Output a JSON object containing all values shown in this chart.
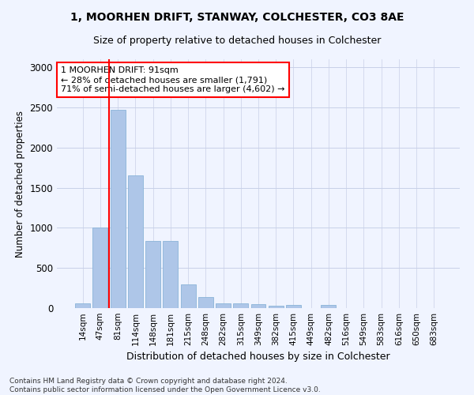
{
  "title1": "1, MOORHEN DRIFT, STANWAY, COLCHESTER, CO3 8AE",
  "title2": "Size of property relative to detached houses in Colchester",
  "xlabel": "Distribution of detached houses by size in Colchester",
  "ylabel": "Number of detached properties",
  "categories": [
    "14sqm",
    "47sqm",
    "81sqm",
    "114sqm",
    "148sqm",
    "181sqm",
    "215sqm",
    "248sqm",
    "282sqm",
    "315sqm",
    "349sqm",
    "382sqm",
    "415sqm",
    "449sqm",
    "482sqm",
    "516sqm",
    "549sqm",
    "583sqm",
    "616sqm",
    "650sqm",
    "683sqm"
  ],
  "values": [
    60,
    1000,
    2470,
    1650,
    840,
    840,
    295,
    140,
    55,
    55,
    45,
    25,
    35,
    0,
    35,
    0,
    0,
    0,
    0,
    0,
    0
  ],
  "bar_color": "#aec6e8",
  "bar_edge_color": "#8ab4d8",
  "vline_x": 1.5,
  "vline_color": "red",
  "annotation_text": "1 MOORHEN DRIFT: 91sqm\n← 28% of detached houses are smaller (1,791)\n71% of semi-detached houses are larger (4,602) →",
  "annotation_box_color": "red",
  "ylim": [
    0,
    3100
  ],
  "yticks": [
    0,
    500,
    1000,
    1500,
    2000,
    2500,
    3000
  ],
  "footnote": "Contains HM Land Registry data © Crown copyright and database right 2024.\nContains public sector information licensed under the Open Government Licence v3.0.",
  "bg_color": "#f0f4ff",
  "grid_color": "#c8d0e8"
}
